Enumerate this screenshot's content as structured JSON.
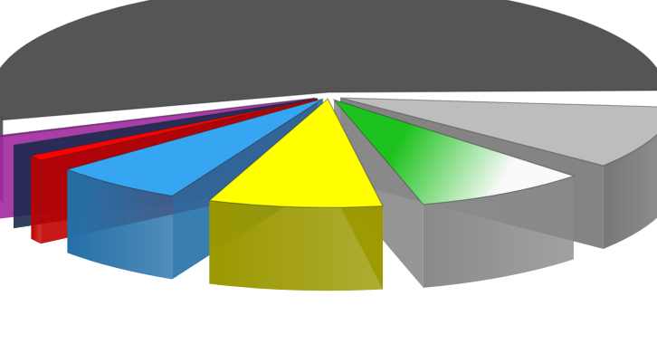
{
  "chart_data": {
    "type": "pie",
    "style": "3d-exploded",
    "title": "",
    "legend": "none",
    "data_labels": "none",
    "slices": [
      {
        "value": 55.5,
        "color": "#555555",
        "side_color": "#3a3a3a"
      },
      {
        "value": 11.0,
        "color": "#bdbdbd",
        "side_color": "#777777"
      },
      {
        "value": 10.0,
        "color": "#1ec21e",
        "color_end": "#fafafa",
        "side_color": "#8a8a8a"
      },
      {
        "value": 10.0,
        "color": "#ffff00",
        "side_color": "#9b9800"
      },
      {
        "value": 8.0,
        "color": "#36a6f3",
        "side_color": "#2470a8"
      },
      {
        "value": 2.5,
        "color": "#ff0000",
        "side_color": "#c00000"
      },
      {
        "value": 1.5,
        "color": "#2a3f6e",
        "side_color": "#1c2a4e"
      },
      {
        "value": 1.5,
        "color": "#c235c2",
        "side_color": "#a0299f"
      }
    ]
  }
}
